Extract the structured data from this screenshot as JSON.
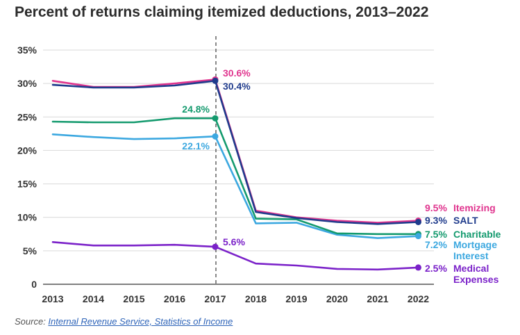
{
  "title": "Percent of returns claiming itemized deductions, 2013–2022",
  "source": {
    "prefix": "Source: ",
    "link_text": "Internal Revenue Service, Statistics of Income"
  },
  "chart_data": {
    "type": "line",
    "title": "Percent of returns claiming itemized deductions, 2013–2022",
    "x": [
      2013,
      2014,
      2015,
      2016,
      2017,
      2018,
      2019,
      2020,
      2021,
      2022
    ],
    "ylim": [
      0,
      35
    ],
    "yticks": [
      "0",
      "5%",
      "10%",
      "15%",
      "20%",
      "25%",
      "30%",
      "35%"
    ],
    "ytick_values": [
      0,
      5,
      10,
      15,
      20,
      25,
      30,
      35
    ],
    "grid": "horizontal",
    "marker_line": {
      "x": 2017,
      "style": "dashed",
      "color": "#555555"
    },
    "series": [
      {
        "key": "itemizing",
        "name": "Itemizing",
        "color": "#e0348e",
        "values": [
          30.4,
          29.5,
          29.5,
          30.0,
          30.6,
          11.0,
          10.0,
          9.5,
          9.2,
          9.5
        ],
        "mid_label": "30.6%",
        "end_label_value": "9.5%",
        "end_label_name": [
          "Itemizing"
        ]
      },
      {
        "key": "salt",
        "name": "SALT",
        "color": "#1f3b8c",
        "values": [
          29.8,
          29.4,
          29.4,
          29.7,
          30.4,
          10.8,
          9.9,
          9.3,
          9.0,
          9.3
        ],
        "mid_label": "30.4%",
        "end_label_value": "9.3%",
        "end_label_name": [
          "SALT"
        ]
      },
      {
        "key": "charitable",
        "name": "Charitable",
        "color": "#149a6e",
        "values": [
          24.3,
          24.2,
          24.2,
          24.8,
          24.8,
          9.8,
          9.7,
          7.6,
          7.5,
          7.5
        ],
        "mid_label": "24.8%",
        "end_label_value": "7.5%",
        "end_label_name": [
          "Charitable"
        ]
      },
      {
        "key": "mortgage",
        "name": "Mortgage Interest",
        "color": "#3ca8e0",
        "values": [
          22.4,
          22.0,
          21.7,
          21.8,
          22.1,
          9.1,
          9.2,
          7.4,
          6.9,
          7.2
        ],
        "mid_label": "22.1%",
        "end_label_value": "7.2%",
        "end_label_name": [
          "Mortgage",
          "Interest"
        ]
      },
      {
        "key": "medical",
        "name": "Medical Expenses",
        "color": "#7b22c9",
        "values": [
          6.3,
          5.8,
          5.8,
          5.9,
          5.6,
          3.1,
          2.8,
          2.3,
          2.2,
          2.5
        ],
        "mid_label": "5.6%",
        "end_label_value": "2.5%",
        "end_label_name": [
          "Medical",
          "Expenses"
        ]
      }
    ]
  }
}
